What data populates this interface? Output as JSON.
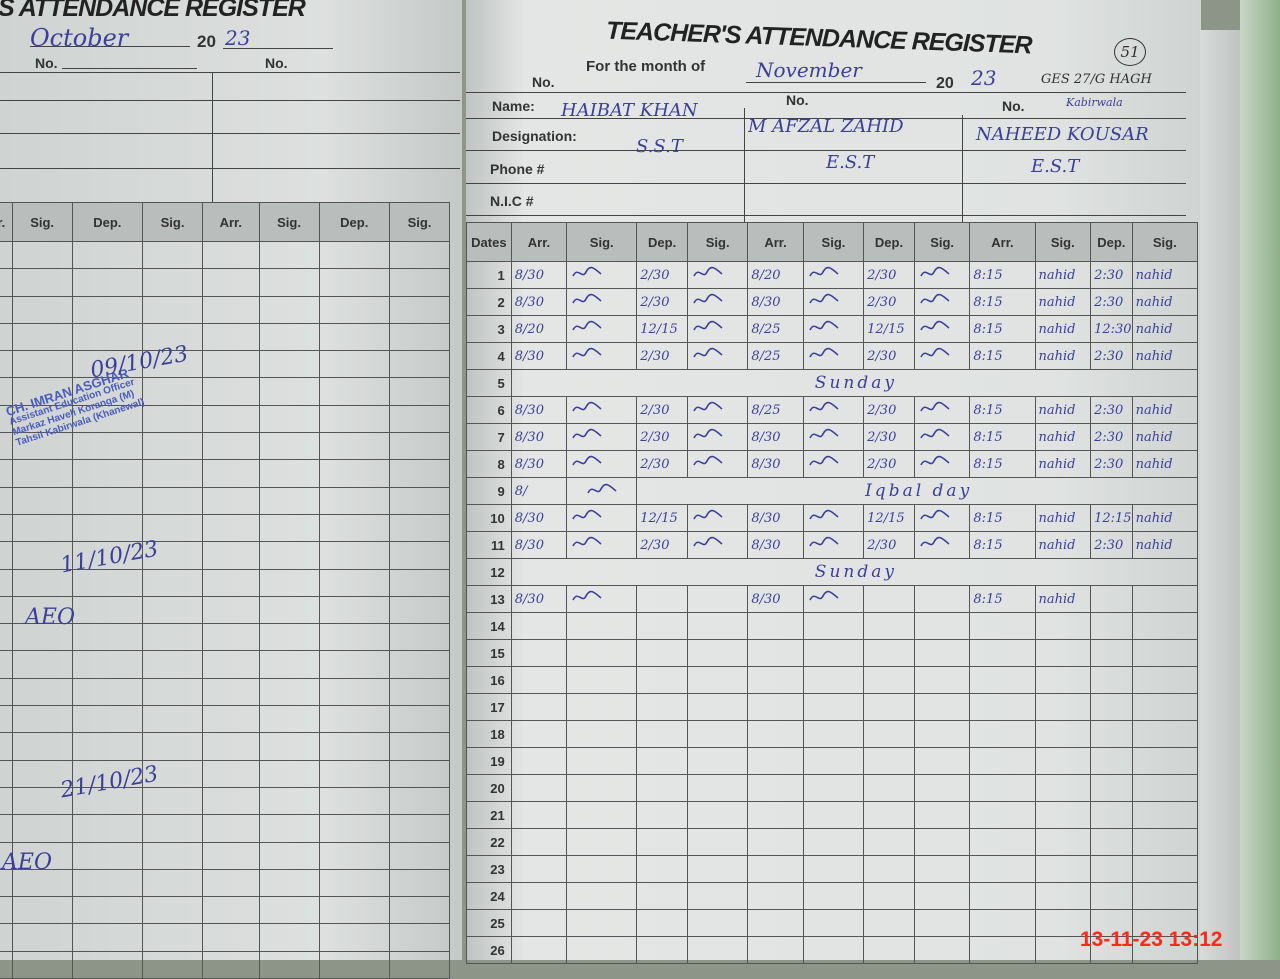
{
  "left_page": {
    "title": "S ATTENDANCE REGISTER",
    "month": "October",
    "year_prefix": "20",
    "year_suffix": "23",
    "no_label": "No.",
    "headers": [
      "r.",
      "Sig.",
      "Dep.",
      "Sig.",
      "Arr.",
      "Sig.",
      "Dep.",
      "Sig."
    ],
    "notes": [
      "09/10/23",
      "11/10/23",
      "AEO",
      "21/10/23",
      "AEO"
    ],
    "stamp": {
      "lines": [
        "CH. IMRAN ASGHAR",
        "Assistant Education Officer",
        "Markaz Haveli Koranga (M)",
        "Tahsil Kabirwala (Khanewal)"
      ]
    }
  },
  "right_page": {
    "title": "TEACHER'S ATTENDANCE REGISTER",
    "page_number": "51",
    "month_label": "For the month of",
    "month": "November",
    "year_prefix": "20",
    "year_suffix": "23",
    "no_label": "No.",
    "school": "GES 27/G HAGH",
    "school_place": "Kabirwala",
    "field_labels": {
      "name": "Name:",
      "designation": "Designation:",
      "phone": "Phone #",
      "nic": "N.I.C #"
    },
    "teachers": [
      {
        "name": "HAIBAT KHAN",
        "designation": "S.S.T"
      },
      {
        "name": "M AFZAL ZAHID",
        "designation": "E.S.T"
      },
      {
        "name": "NAHEED KOUSAR",
        "designation": "E.S.T"
      }
    ],
    "dates_header": "Dates",
    "col_headers": [
      "Arr.",
      "Sig.",
      "Dep.",
      "Sig."
    ],
    "rows": [
      {
        "date": "1",
        "t": [
          [
            "8/30",
            "2/30"
          ],
          [
            "8/20",
            "2/30"
          ],
          [
            "8:15",
            "2:30"
          ]
        ]
      },
      {
        "date": "2",
        "t": [
          [
            "8/30",
            "2/30"
          ],
          [
            "8/30",
            "2/30"
          ],
          [
            "8:15",
            "2:30"
          ]
        ]
      },
      {
        "date": "3",
        "t": [
          [
            "8/20",
            "12/15"
          ],
          [
            "8/25",
            "12/15"
          ],
          [
            "8:15",
            "12:30"
          ]
        ]
      },
      {
        "date": "4",
        "t": [
          [
            "8/30",
            "2/30"
          ],
          [
            "8/25",
            "2/30"
          ],
          [
            "8:15",
            "2:30"
          ]
        ]
      },
      {
        "date": "5",
        "note": "Sunday"
      },
      {
        "date": "6",
        "t": [
          [
            "8/30",
            "2/30"
          ],
          [
            "8/25",
            "2/30"
          ],
          [
            "8:15",
            "2:30"
          ]
        ]
      },
      {
        "date": "7",
        "t": [
          [
            "8/30",
            "2/30"
          ],
          [
            "8/30",
            "2/30"
          ],
          [
            "8:15",
            "2:30"
          ]
        ]
      },
      {
        "date": "8",
        "t": [
          [
            "8/30",
            "2/30"
          ],
          [
            "8/30",
            "2/30"
          ],
          [
            "8:15",
            "2:30"
          ]
        ]
      },
      {
        "date": "9",
        "first_arr": "8/",
        "note": "Iqbal day"
      },
      {
        "date": "10",
        "t": [
          [
            "8/30",
            "12/15"
          ],
          [
            "8/30",
            "12/15"
          ],
          [
            "8:15",
            "12:15"
          ]
        ]
      },
      {
        "date": "11",
        "t": [
          [
            "8/30",
            "2/30"
          ],
          [
            "8/30",
            "2/30"
          ],
          [
            "8:15",
            "2:30"
          ]
        ]
      },
      {
        "date": "12",
        "note": "Sunday"
      },
      {
        "date": "13",
        "t": [
          [
            "8/30",
            ""
          ],
          [
            "8/30",
            ""
          ],
          [
            "8:15",
            ""
          ]
        ]
      },
      {
        "date": "14"
      },
      {
        "date": "15"
      },
      {
        "date": "16"
      },
      {
        "date": "17"
      },
      {
        "date": "18"
      },
      {
        "date": "19"
      },
      {
        "date": "20"
      },
      {
        "date": "21"
      },
      {
        "date": "22"
      },
      {
        "date": "23"
      },
      {
        "date": "24"
      },
      {
        "date": "25"
      },
      {
        "date": "26"
      }
    ],
    "third_teacher_signature": "nahid"
  },
  "timestamp": "13-11-23  13:12",
  "colors": {
    "ink": "#3c3f9a",
    "stamp": "#4a5cc0",
    "timestamp": "#ff2a1a",
    "header_bg": "#b9bdbb"
  }
}
